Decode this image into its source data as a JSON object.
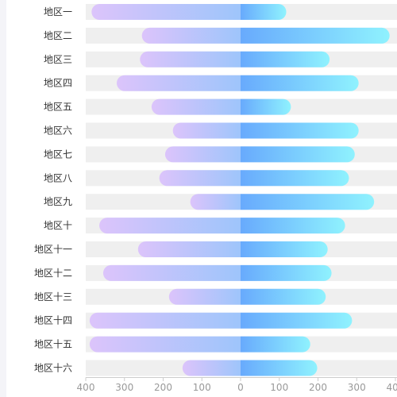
{
  "chart_data": {
    "type": "bar",
    "orientation": "horizontal-diverging",
    "categories": [
      "地区一",
      "地区二",
      "地区三",
      "地区四",
      "地区五",
      "地区六",
      "地区七",
      "地区八",
      "地区九",
      "地区十",
      "地区十一",
      "地区十二",
      "地区十三",
      "地区十四",
      "地区十五",
      "地区十六"
    ],
    "series": [
      {
        "side": "left",
        "values": [
          385,
          255,
          260,
          320,
          230,
          175,
          195,
          210,
          130,
          365,
          265,
          355,
          185,
          390,
          390,
          150
        ]
      },
      {
        "side": "right",
        "values": [
          118,
          385,
          230,
          305,
          130,
          305,
          295,
          280,
          345,
          270,
          225,
          235,
          220,
          288,
          180,
          198
        ]
      }
    ],
    "x_ticks": [
      "400",
      "300",
      "200",
      "100",
      "0",
      "100",
      "200",
      "300",
      "400"
    ],
    "xlim": [
      -400,
      400
    ],
    "grid": false,
    "colors": {
      "left_gradient": [
        "#dcc4fb",
        "#9ec5fb"
      ],
      "right_gradient": [
        "#68aafd",
        "#8ff2fe"
      ],
      "track": "#efefef",
      "axis": "#cccccc",
      "category_text": "#333333",
      "tick_text": "#999999"
    }
  }
}
